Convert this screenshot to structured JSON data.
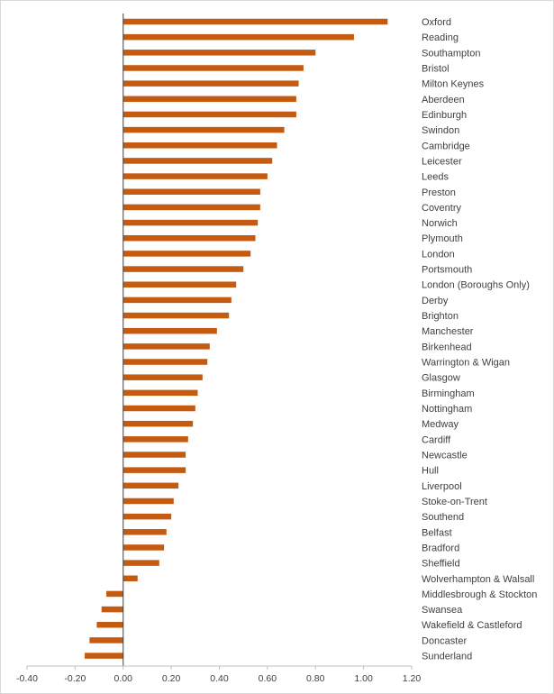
{
  "chart_data": {
    "type": "bar",
    "orientation": "horizontal",
    "title": "",
    "xlabel": "",
    "ylabel": "",
    "xlim": [
      -0.4,
      1.2
    ],
    "x_ticks": [
      -0.4,
      -0.2,
      0.0,
      0.2,
      0.4,
      0.6,
      0.8,
      1.0,
      1.2
    ],
    "x_tick_labels": [
      "-0.40",
      "-0.20",
      "0.00",
      "0.20",
      "0.40",
      "0.60",
      "0.80",
      "1.00",
      "1.20"
    ],
    "grid": false,
    "legend": "none",
    "bar_color": "#C55A11",
    "categories": [
      "Oxford",
      "Reading",
      "Southampton",
      "Bristol",
      "Milton Keynes",
      "Aberdeen",
      "Edinburgh",
      "Swindon",
      "Cambridge",
      "Leicester",
      "Leeds",
      "Preston",
      "Coventry",
      "Norwich",
      "Plymouth",
      "London",
      "Portsmouth",
      "London (Boroughs Only)",
      "Derby",
      "Brighton",
      "Manchester",
      "Birkenhead",
      "Warrington & Wigan",
      "Glasgow",
      "Birmingham",
      "Nottingham",
      "Medway",
      "Cardiff",
      "Newcastle",
      "Hull",
      "Liverpool",
      "Stoke-on-Trent",
      "Southend",
      "Belfast",
      "Bradford",
      "Sheffield",
      "Wolverhampton & Walsall",
      "Middlesbrough & Stockton",
      "Swansea",
      "Wakefield & Castleford",
      "Doncaster",
      "Sunderland"
    ],
    "values": [
      1.1,
      0.96,
      0.8,
      0.75,
      0.73,
      0.72,
      0.72,
      0.67,
      0.64,
      0.62,
      0.6,
      0.57,
      0.57,
      0.56,
      0.55,
      0.53,
      0.5,
      0.47,
      0.45,
      0.44,
      0.39,
      0.36,
      0.35,
      0.33,
      0.31,
      0.3,
      0.29,
      0.27,
      0.26,
      0.26,
      0.23,
      0.21,
      0.2,
      0.18,
      0.17,
      0.15,
      0.06,
      -0.07,
      -0.09,
      -0.11,
      -0.14,
      -0.16
    ]
  }
}
